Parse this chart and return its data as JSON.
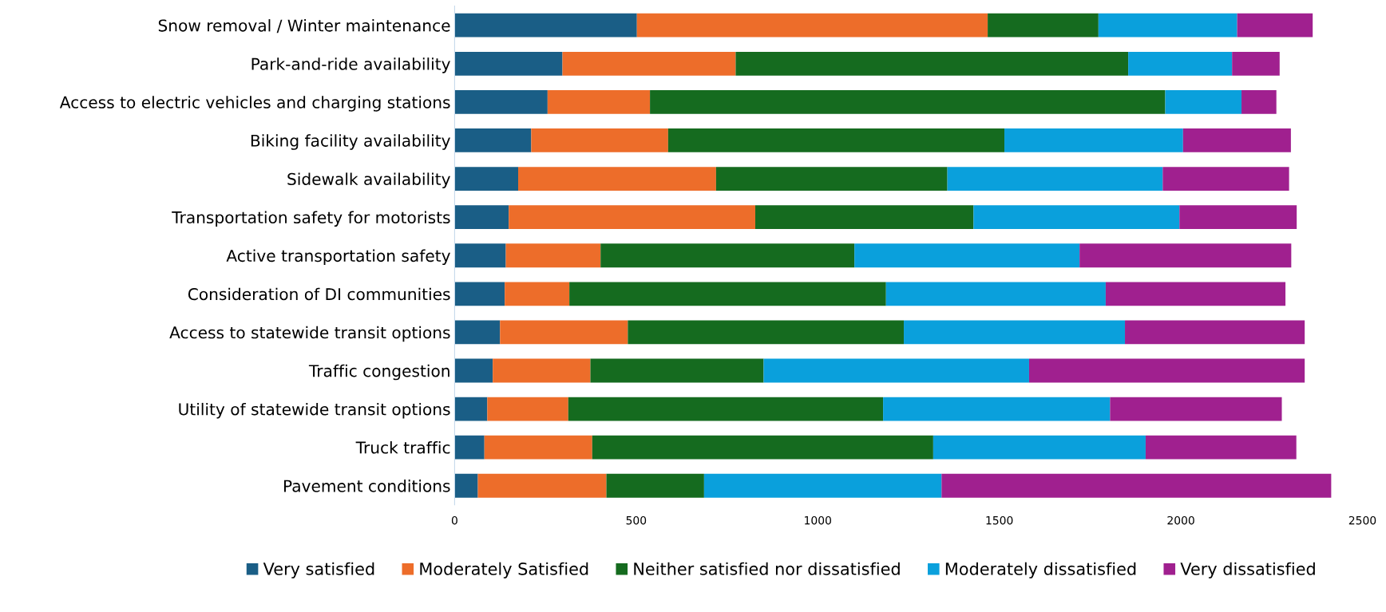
{
  "chart_data": {
    "type": "bar",
    "orientation": "horizontal",
    "stacked": true,
    "legend": "bottom",
    "grid": false,
    "categories": [
      "Snow removal / Winter maintenance",
      "Park-and-ride availability",
      "Access to electric vehicles and charging stations",
      "Biking facility availability",
      "Sidewalk availability",
      "Transportation safety for motorists",
      "Active transportation safety",
      "Consideration of DI communities",
      "Access to statewide transit options",
      "Traffic congestion",
      "Utility of statewide transit options",
      "Truck traffic",
      "Pavement conditions"
    ],
    "xlim": [
      0,
      2500
    ],
    "xticks": [
      0,
      500,
      1000,
      1500,
      2000,
      2500
    ],
    "series": [
      {
        "name": "Very satisfied",
        "color": "#1a5e86",
        "values": [
          502,
          297,
          256,
          211,
          175,
          149,
          141,
          138,
          125,
          105,
          90,
          82,
          64
        ]
      },
      {
        "name": "Moderately Satisfied",
        "color": "#ed6d2a",
        "values": [
          966,
          477,
          282,
          377,
          545,
          679,
          261,
          178,
          352,
          269,
          223,
          297,
          354
        ]
      },
      {
        "name": "Neither satisfied nor dissatisfied",
        "color": "#156b1f",
        "values": [
          305,
          1081,
          1419,
          926,
          637,
          601,
          699,
          872,
          760,
          477,
          867,
          939,
          269
        ]
      },
      {
        "name": "Moderately dissatisfied",
        "color": "#0aa0dc",
        "values": [
          382,
          286,
          210,
          492,
          593,
          567,
          620,
          605,
          609,
          731,
          625,
          585,
          654
        ]
      },
      {
        "name": "Very dissatisfied",
        "color": "#a0208f",
        "values": [
          208,
          131,
          96,
          297,
          348,
          323,
          583,
          495,
          495,
          759,
          473,
          415,
          1073
        ]
      }
    ]
  }
}
